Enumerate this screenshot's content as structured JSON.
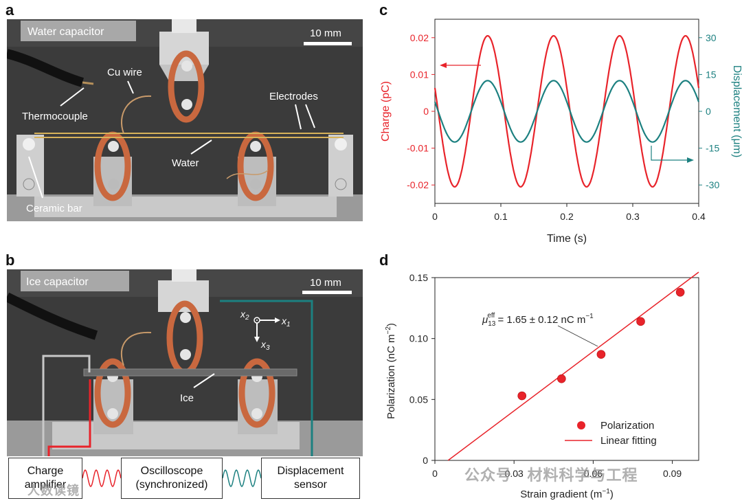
{
  "figure": {
    "panels": {
      "a": {
        "letter": "a",
        "tag": "Water capacitor",
        "scale": "10 mm",
        "labels": {
          "cu_wire": "Cu wire",
          "thermocouple": "Thermocouple",
          "electrodes": "Electrodes",
          "water": "Water",
          "ceramic_bar": "Ceramic bar"
        }
      },
      "b": {
        "letter": "b",
        "tag": "Ice capacitor",
        "scale": "10 mm",
        "labels": {
          "ice": "Ice"
        },
        "axes": {
          "x1": "x",
          "x1_sub": "1",
          "x2": "x",
          "x2_sub": "2",
          "x3": "x",
          "x3_sub": "3"
        },
        "boxes": {
          "charge_amp_l1": "Charge",
          "charge_amp_l2": "amplifier",
          "osc_l1": "Oscilloscope",
          "osc_l2": "(synchronized)",
          "disp_l1": "Displacement",
          "disp_l2": "sensor"
        }
      }
    },
    "colors": {
      "red": "#e8232a",
      "teal": "#1c8080",
      "grey_wire": "#c8c8c8"
    },
    "watermarks": {
      "top": "公众号 · 材料科学与工程",
      "bottom": "人数读镜"
    }
  },
  "chart_data": [
    {
      "panel": "c",
      "type": "line",
      "title": "",
      "xlabel": "Time (s)",
      "ylabel_left": "Charge (pC)",
      "ylabel_right": "Displacement (μm)",
      "xlim": [
        0,
        0.4
      ],
      "ylim_left": [
        -0.025,
        0.025
      ],
      "ylim_right": [
        -37.5,
        37.5
      ],
      "x_ticks": [
        "0",
        "0.1",
        "0.2",
        "0.3",
        "0.4"
      ],
      "y_left_ticks": [
        "0.02",
        "0.01",
        "0",
        "-0.01",
        "-0.02"
      ],
      "y_right_ticks": [
        "30",
        "15",
        "0",
        "-15",
        "-30"
      ],
      "series": [
        {
          "name": "Charge",
          "axis": "left",
          "amplitude": 0.0205,
          "period_s": 0.1,
          "peak_time_s": 0.08,
          "color": "#e8232a"
        },
        {
          "name": "Displacement",
          "axis": "right",
          "amplitude": 12.5,
          "period_s": 0.1,
          "peak_time_s": 0.08,
          "color": "#1c8080"
        }
      ]
    },
    {
      "panel": "d",
      "type": "scatter",
      "xlabel": "Strain gradient (m",
      "xlabel_sup": "−1",
      "xlabel_end": ")",
      "ylabel": "Polarization (nC m",
      "ylabel_sup": "−2",
      "ylabel_end": ")",
      "xlim": [
        0,
        0.1
      ],
      "ylim": [
        0,
        0.15
      ],
      "x_ticks": [
        "0",
        "0.03",
        "0.06",
        "0.09"
      ],
      "y_ticks": [
        "0",
        "0.05",
        "0.10",
        "0.15"
      ],
      "points": [
        {
          "x": 0.033,
          "y": 0.053
        },
        {
          "x": 0.048,
          "y": 0.067
        },
        {
          "x": 0.063,
          "y": 0.087
        },
        {
          "x": 0.078,
          "y": 0.114
        },
        {
          "x": 0.093,
          "y": 0.138
        }
      ],
      "fit": {
        "x0": 0.005,
        "y0": 0,
        "x1": 0.1,
        "y1": 0.16
      },
      "annotation": {
        "mu": "μ",
        "sub": "13",
        "sup": "eff",
        "text": " = 1.65 ± 0.12 nC m",
        "text_sup": "−1"
      },
      "legend": [
        "Polarization",
        "Linear fitting"
      ]
    }
  ]
}
